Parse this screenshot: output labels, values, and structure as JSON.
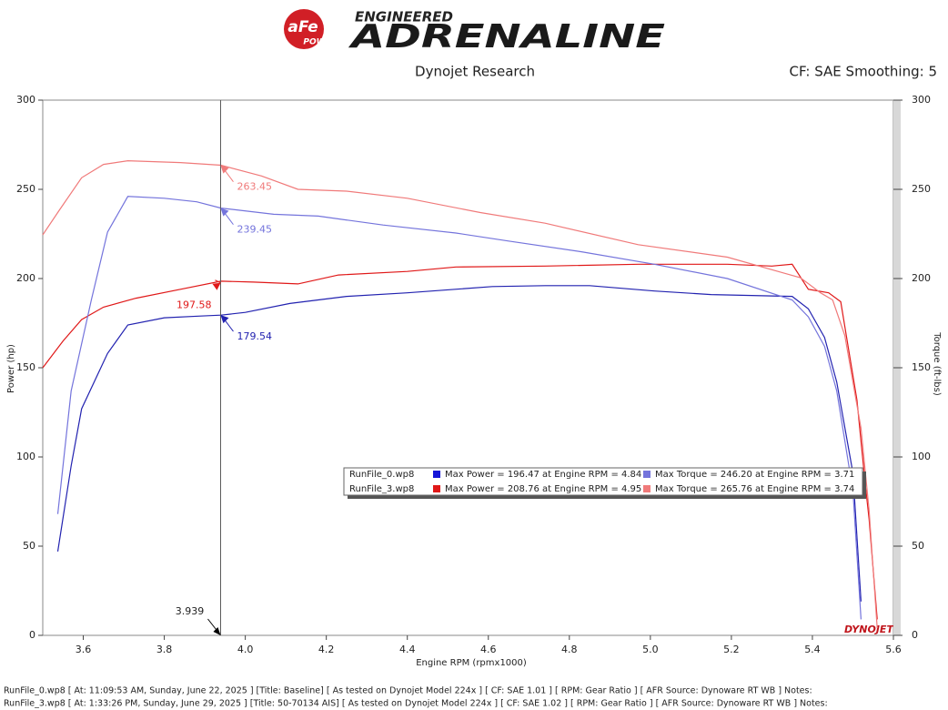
{
  "header": {
    "logo_mark": "aFe",
    "logo_sub": "POWER",
    "brand_top": "ENGINEERED",
    "brand": "ADRENALINE",
    "source": "Dynojet Research",
    "settings": "CF: SAE Smoothing: 5",
    "watermark": "DYNOJET"
  },
  "chart_data": {
    "type": "line",
    "x_label": "Engine RPM (rpmx1000)",
    "y_label": "Power (hp)",
    "y2_label": "Torque (ft-lbs)",
    "xlim": [
      3.5,
      5.6
    ],
    "xticks": [
      3.6,
      3.8,
      {
        "value": 4,
        "label": "4.0"
      },
      4.2,
      4.4,
      4.6,
      4.8,
      {
        "value": 5,
        "label": "5.0"
      },
      5.2,
      5.4,
      5.6
    ],
    "ylim": [
      0,
      300
    ],
    "yticks": [
      0,
      50,
      100,
      150,
      200,
      250,
      300
    ],
    "y2lim": [
      0,
      300
    ],
    "y2ticks": [
      0,
      50,
      100,
      150,
      200,
      250,
      300
    ],
    "series": [
      {
        "color": "#2222b0",
        "x": [
          3.537,
          3.57,
          3.596,
          3.66,
          3.71,
          3.8,
          3.89,
          3.94,
          4.0,
          4.11,
          4.25,
          4.4,
          4.61,
          4.74,
          4.85,
          5.01,
          5.15,
          5.35,
          5.39,
          5.43,
          5.46,
          5.5,
          5.52
        ],
        "values": [
          47,
          95,
          127,
          158,
          174,
          178,
          179,
          179.5,
          181,
          186,
          190,
          192,
          195.5,
          196,
          196,
          193,
          191,
          190,
          183,
          167,
          142,
          91,
          19
        ]
      },
      {
        "color": "#e01818",
        "x": [
          3.5,
          3.55,
          3.596,
          3.65,
          3.73,
          3.84,
          3.94,
          4.02,
          4.13,
          4.23,
          4.4,
          4.52,
          4.74,
          4.97,
          5.19,
          5.3,
          5.35,
          5.39,
          5.44,
          5.47,
          5.51,
          5.53,
          5.54,
          5.56
        ],
        "values": [
          150,
          165,
          177,
          184,
          189,
          194,
          198.5,
          198,
          197,
          202,
          204,
          206.5,
          207,
          208,
          208,
          207,
          208,
          194,
          192,
          187,
          132,
          86,
          65,
          9
        ]
      },
      {
        "color": "#7474dc",
        "axis": "y2",
        "x": [
          3.537,
          3.57,
          3.62,
          3.66,
          3.71,
          3.8,
          3.88,
          3.94,
          4.07,
          4.18,
          4.34,
          4.52,
          4.65,
          4.83,
          5.01,
          5.19,
          5.35,
          5.39,
          5.43,
          5.46,
          5.5,
          5.52
        ],
        "values": [
          68,
          137,
          188,
          226,
          246,
          245,
          243,
          239.5,
          236,
          235,
          230,
          225.5,
          221,
          215,
          208,
          200,
          188,
          178.5,
          162,
          137,
          81,
          9
        ]
      },
      {
        "color": "#f07a7a",
        "axis": "y2",
        "x": [
          3.5,
          3.54,
          3.596,
          3.65,
          3.71,
          3.84,
          3.94,
          4.04,
          4.13,
          4.25,
          4.4,
          4.58,
          4.74,
          4.97,
          5.19,
          5.33,
          5.37,
          5.42,
          5.45,
          5.48,
          5.52,
          5.54,
          5.56
        ],
        "values": [
          224.5,
          238,
          256.5,
          264,
          266,
          265,
          263.5,
          257.5,
          250,
          249,
          245,
          237,
          231,
          219,
          212,
          203,
          200.5,
          192,
          188,
          168,
          116,
          70,
          4
        ]
      }
    ],
    "cursor": {
      "x": 3.939,
      "values": [
        {
          "value": 263.45,
          "color": "#f07a7a"
        },
        {
          "value": 239.45,
          "color": "#7474dc"
        },
        {
          "value": 197.58,
          "color": "#e01818"
        },
        {
          "value": 179.54,
          "color": "#2222b0"
        }
      ]
    },
    "legend": [
      {
        "file": "RunFile_0.wp8",
        "items": [
          {
            "color": "#1515d8",
            "text": "Max Power = 196.47 at Engine RPM = 4.84"
          },
          {
            "color": "#7474dc",
            "text": "Max Torque = 246.20 at Engine RPM = 3.71"
          }
        ]
      },
      {
        "file": "RunFile_3.wp8",
        "items": [
          {
            "color": "#e01818",
            "text": "Max Power = 208.76 at Engine RPM = 4.95"
          },
          {
            "color": "#f07a7a",
            "text": "Max Torque = 265.76 at Engine RPM = 3.74"
          }
        ]
      }
    ]
  },
  "footer": [
    "RunFile_0.wp8 [ At: 11:09:53 AM, Sunday, June 22, 2025 ] [Title: Baseline]  [ As tested on Dynojet Model 224x ] [ CF: SAE 1.01 ] [ RPM: Gear Ratio ] [ AFR Source: Dynoware RT WB ] Notes:",
    "RunFile_3.wp8 [ At: 1:33:26 PM, Sunday, June 29, 2025 ] [Title: 50-70134 AIS]  [ As tested on Dynojet Model 224x ] [ CF: SAE 1.02 ] [ RPM: Gear Ratio ] [ AFR Source: Dynoware RT WB ] Notes:"
  ]
}
